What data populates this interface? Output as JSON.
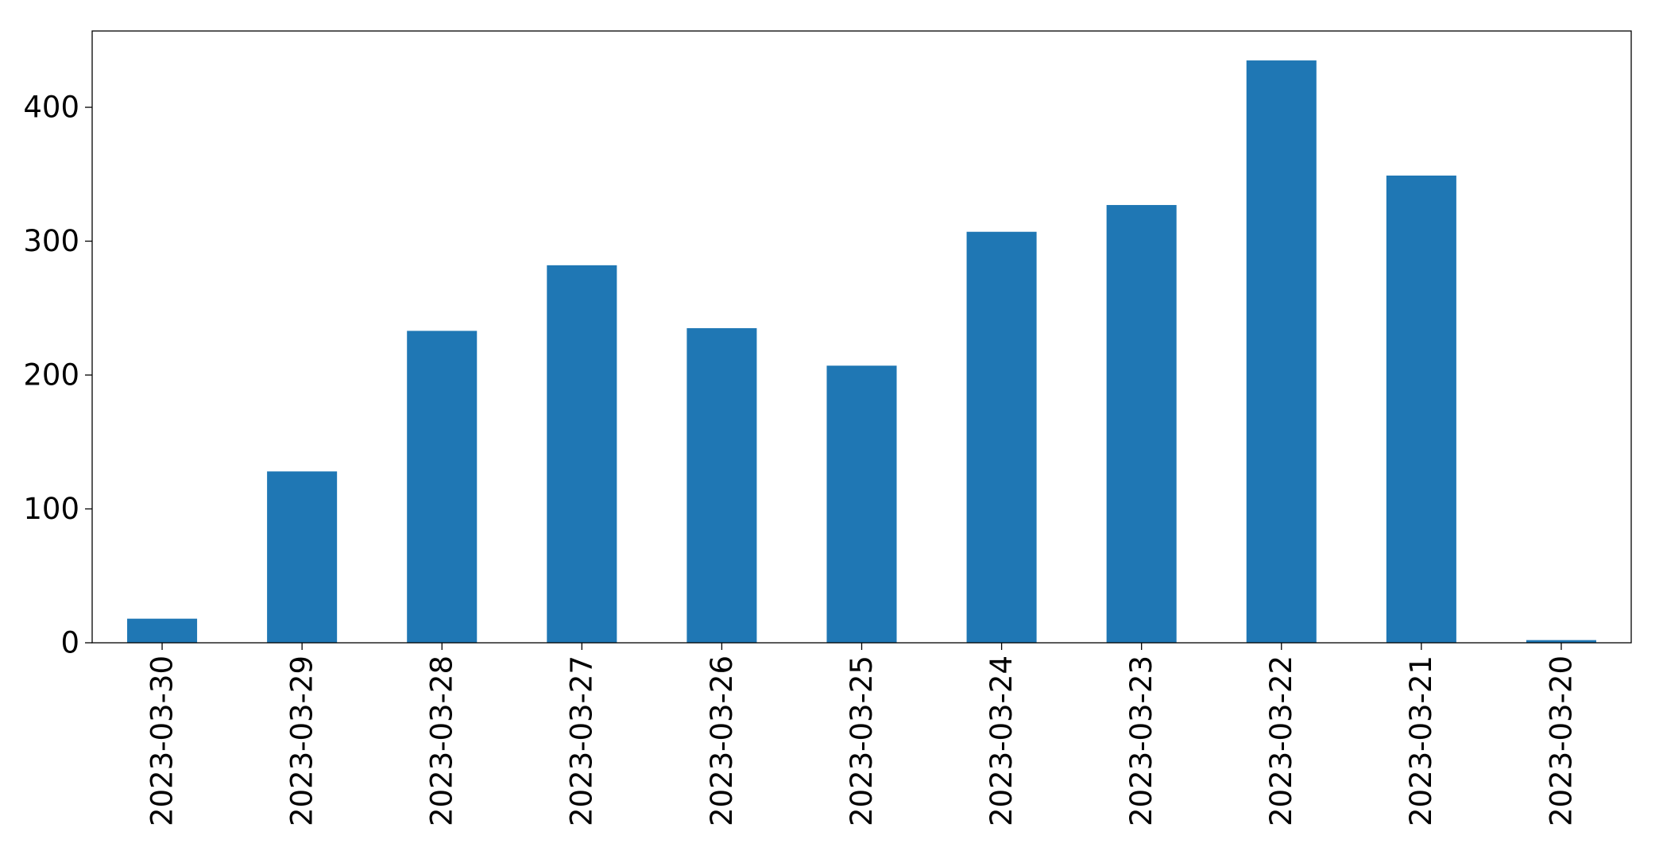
{
  "chart_data": {
    "type": "bar",
    "categories": [
      "2023-03-30",
      "2023-03-29",
      "2023-03-28",
      "2023-03-27",
      "2023-03-26",
      "2023-03-25",
      "2023-03-24",
      "2023-03-23",
      "2023-03-22",
      "2023-03-21",
      "2023-03-20"
    ],
    "values": [
      18,
      128,
      233,
      282,
      235,
      207,
      307,
      327,
      435,
      349,
      2
    ],
    "color": "#1f77b4",
    "ylim": [
      0,
      457
    ],
    "yticks": [
      0,
      100,
      200,
      300,
      400
    ],
    "grid": false
  }
}
